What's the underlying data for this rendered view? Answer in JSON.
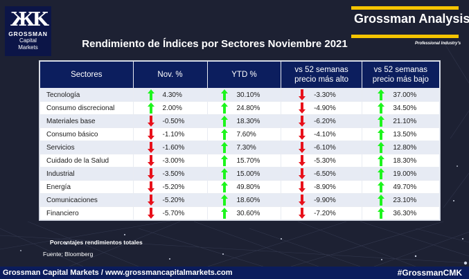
{
  "logo": {
    "mark": "ЖK",
    "brand": "GROSSMAN",
    "line1": "Capital",
    "line2": "Markets"
  },
  "header_brand": {
    "name": "Grossman Analysis",
    "tagline": "Professional Industry's",
    "accent_color": "#f5c400"
  },
  "title": "Rendimiento de Índices por Sectores Noviembre 2021",
  "table": {
    "columns": [
      "Sectores",
      "Nov. %",
      "YTD %",
      "vs 52 semanas precio más alto",
      "vs 52 semanas precio más bajo"
    ],
    "colors": {
      "up": "#1df51d",
      "down": "#e8101a",
      "header_bg": "#0c1e5e"
    },
    "rows": [
      {
        "sector": "Tecnología",
        "nov": "4.30%",
        "nov_dir": "up",
        "ytd": "30.10%",
        "ytd_dir": "up",
        "high": "-3.30%",
        "high_dir": "down",
        "low": "37.00%",
        "low_dir": "up"
      },
      {
        "sector": "Consumo discrecional",
        "nov": "2.00%",
        "nov_dir": "up",
        "ytd": "24.80%",
        "ytd_dir": "up",
        "high": "-4.90%",
        "high_dir": "down",
        "low": "34.50%",
        "low_dir": "up"
      },
      {
        "sector": "Materiales base",
        "nov": "-0.50%",
        "nov_dir": "down",
        "ytd": "18.30%",
        "ytd_dir": "up",
        "high": "-6.20%",
        "high_dir": "down",
        "low": "21.10%",
        "low_dir": "up"
      },
      {
        "sector": "Consumo básico",
        "nov": "-1.10%",
        "nov_dir": "down",
        "ytd": "7.60%",
        "ytd_dir": "up",
        "high": "-4.10%",
        "high_dir": "down",
        "low": "13.50%",
        "low_dir": "up"
      },
      {
        "sector": "Servicios",
        "nov": "-1.60%",
        "nov_dir": "down",
        "ytd": "7.30%",
        "ytd_dir": "up",
        "high": "-6.10%",
        "high_dir": "down",
        "low": "12.80%",
        "low_dir": "up"
      },
      {
        "sector": "Cuidado de la Salud",
        "nov": "-3.00%",
        "nov_dir": "down",
        "ytd": "15.70%",
        "ytd_dir": "up",
        "high": "-5.30%",
        "high_dir": "down",
        "low": "18.30%",
        "low_dir": "up"
      },
      {
        "sector": "Industrial",
        "nov": "-3.50%",
        "nov_dir": "down",
        "ytd": "15.00%",
        "ytd_dir": "up",
        "high": "-6.50%",
        "high_dir": "down",
        "low": "19.00%",
        "low_dir": "up"
      },
      {
        "sector": "Energía",
        "nov": "-5.20%",
        "nov_dir": "down",
        "ytd": "49.80%",
        "ytd_dir": "up",
        "high": "-8.90%",
        "high_dir": "down",
        "low": "49.70%",
        "low_dir": "up"
      },
      {
        "sector": "Comunicaciones",
        "nov": "-5.20%",
        "nov_dir": "down",
        "ytd": "18.60%",
        "ytd_dir": "up",
        "high": "-9.90%",
        "high_dir": "down",
        "low": "23.10%",
        "low_dir": "up"
      },
      {
        "sector": "Financiero",
        "nov": "-5.70%",
        "nov_dir": "down",
        "ytd": "30.60%",
        "ytd_dir": "up",
        "high": "-7.20%",
        "high_dir": "down",
        "low": "36.30%",
        "low_dir": "up"
      }
    ]
  },
  "notes": {
    "totals": "Porcentajes rendimientos totales",
    "source": "Fuente; Bloomberg"
  },
  "footer": {
    "left": "Grossman Capital Markets / www.grossmancapitalmarkets.com",
    "right": "#GrossmanCMK"
  }
}
